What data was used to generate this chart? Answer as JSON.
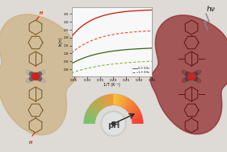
{
  "bg_color": "#dedad6",
  "left_blob_color": "#c8a870",
  "right_blob_color": "#8B2020",
  "plot_bg": "#f8f8f8",
  "red_solid_color": "#cc1100",
  "red_dashed_color": "#ee4422",
  "green_solid_color": "#336611",
  "green_dashed_color": "#77bb33",
  "legend_label_solid": "5.0 GHz",
  "legend_label_dashed": "1.0 GHz",
  "xlabel": "1/T (K⁻¹)",
  "ylabel": "ln(τ)",
  "tau_label": "τ",
  "hv_label": "hν",
  "pH_label": "pH",
  "metal_color": "#cc2222",
  "atom_gray": "#888888",
  "bond_left": "#7a5020",
  "bond_right": "#5a1515"
}
